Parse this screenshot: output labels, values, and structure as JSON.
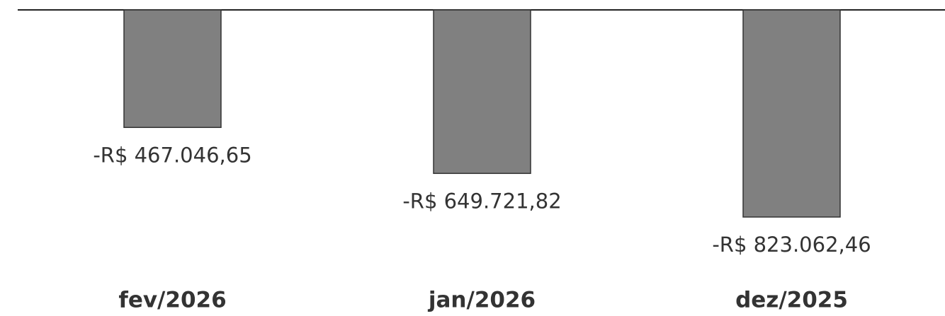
{
  "chart_data": {
    "type": "bar",
    "categories": [
      "fev/2026",
      "jan/2026",
      "dez/2025"
    ],
    "values": [
      -467046.65,
      -649721.82,
      -823062.46
    ],
    "value_labels": [
      "-R$ 467.046,65",
      "-R$ 649.721,82",
      "-R$ 823.062,46"
    ],
    "color": "#808080"
  }
}
